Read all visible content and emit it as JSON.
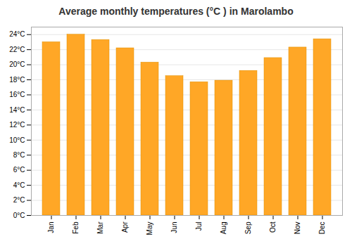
{
  "chart_data": {
    "type": "bar",
    "title": "Average monthly temperatures (°C ) in Marolambo",
    "categories": [
      "Jan",
      "Feb",
      "Mar",
      "Apr",
      "May",
      "Jun",
      "Jul",
      "Aug",
      "Sep",
      "Oct",
      "Nov",
      "Dec"
    ],
    "values": [
      23.0,
      24.0,
      23.3,
      22.2,
      20.3,
      18.5,
      17.7,
      17.9,
      19.2,
      20.9,
      22.3,
      23.4
    ],
    "color": "#FFA726",
    "ylim": [
      0,
      25
    ],
    "yticks": [
      {
        "value": 0,
        "label": "0°C"
      },
      {
        "value": 2,
        "label": "2°C"
      },
      {
        "value": 4,
        "label": "4°C"
      },
      {
        "value": 6,
        "label": "6°C"
      },
      {
        "value": 8,
        "label": "8°C"
      },
      {
        "value": 10,
        "label": "10°C"
      },
      {
        "value": 12,
        "label": "12°C"
      },
      {
        "value": 14,
        "label": "14°C"
      },
      {
        "value": 16,
        "label": "16°C"
      },
      {
        "value": 18,
        "label": "18°C"
      },
      {
        "value": 20,
        "label": "20°C"
      },
      {
        "value": 22,
        "label": "22°C"
      },
      {
        "value": 24,
        "label": "24°C"
      }
    ],
    "grid": true
  }
}
